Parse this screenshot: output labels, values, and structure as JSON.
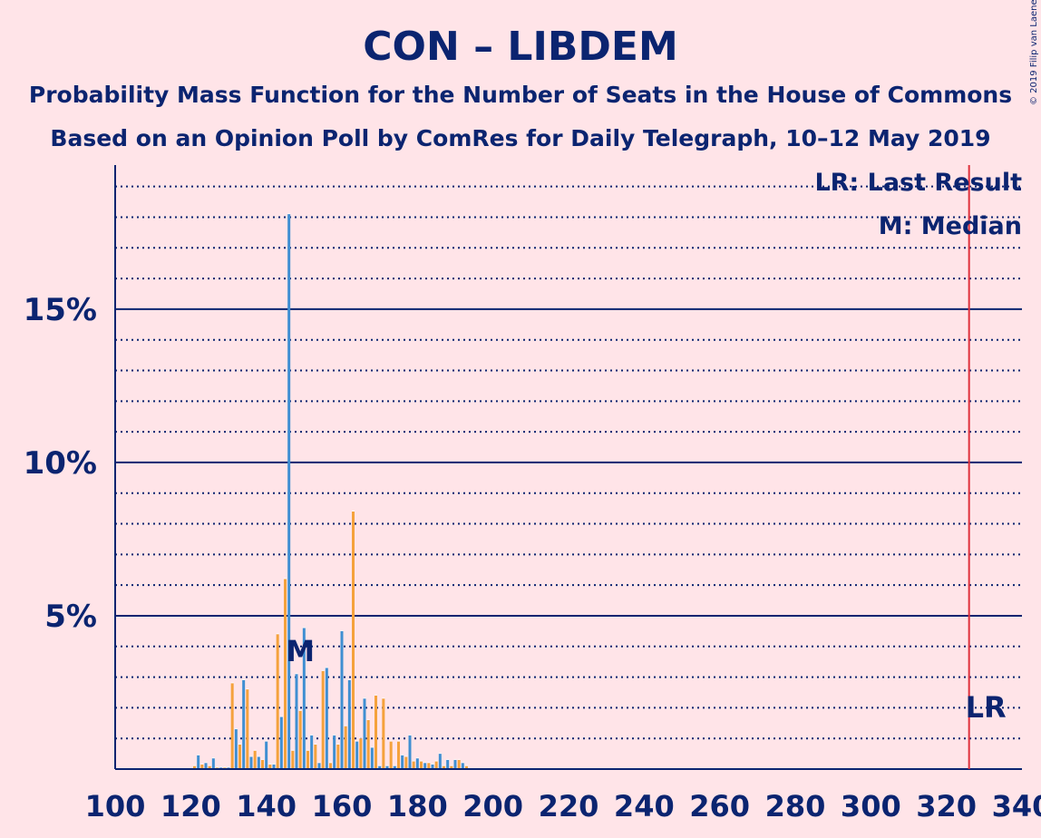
{
  "chart_data": {
    "type": "bar",
    "title": "CON – LIBDEM",
    "subtitle": "Probability Mass Function for the Number of Seats in the House of Commons",
    "subtitle2": "Based on an Opinion Poll by ComRes for Daily Telegraph, 10–12 May 2019",
    "copyright": "© 2019 Filip van Laenen",
    "xlim": [
      100,
      340
    ],
    "ylim": [
      0,
      19.7
    ],
    "x_ticks": [
      100,
      120,
      140,
      160,
      180,
      200,
      220,
      240,
      260,
      280,
      300,
      320,
      340
    ],
    "y_ticks": [
      {
        "value": 5,
        "label": "5%"
      },
      {
        "value": 10,
        "label": "10%"
      },
      {
        "value": 15,
        "label": "15%"
      }
    ],
    "grid": "dotted every 1%, solid at 5%",
    "legend": {
      "placement": "top-right",
      "lr_text": "LR: Last Result",
      "median_text": "M: Median"
    },
    "median": {
      "x": 149,
      "label": "M"
    },
    "last_result": {
      "x": 326,
      "label": "LR"
    },
    "colors": {
      "background": "#FFE4E8",
      "text": "#0B2470",
      "blue": "#3F8FD2",
      "orange": "#F5A23C",
      "last_result_line": "#E0303C"
    },
    "series": [
      {
        "color": "blue",
        "x": [
          122,
          124,
          126,
          128,
          130,
          132,
          134,
          136,
          138,
          140,
          142,
          144,
          146,
          148,
          150,
          152,
          154,
          156,
          158,
          160,
          162,
          164,
          166,
          168,
          170,
          172,
          174,
          176,
          178,
          180,
          182,
          184,
          186,
          188,
          190,
          192
        ],
        "values": [
          0.45,
          0.2,
          0.35,
          0.05,
          0.05,
          1.3,
          2.9,
          0.4,
          0.4,
          0.9,
          0.15,
          1.7,
          18.1,
          3.1,
          4.6,
          1.1,
          0.2,
          3.3,
          1.1,
          4.5,
          2.9,
          0.9,
          2.3,
          0.7,
          0.1,
          0.1,
          0.1,
          0.45,
          1.1,
          0.35,
          0.2,
          0.15,
          0.5,
          0.3,
          0.3,
          0.2
        ]
      },
      {
        "color": "orange",
        "x": [
          121,
          123,
          125,
          127,
          129,
          131,
          133,
          135,
          137,
          139,
          141,
          143,
          145,
          147,
          149,
          151,
          153,
          155,
          157,
          159,
          161,
          163,
          165,
          167,
          169,
          171,
          173,
          175,
          177,
          179,
          181,
          183,
          185,
          187,
          189,
          191,
          193
        ],
        "values": [
          0.1,
          0.15,
          0.1,
          0.05,
          0.05,
          2.8,
          0.8,
          2.6,
          0.6,
          0.3,
          0.15,
          4.4,
          6.2,
          0.6,
          1.9,
          0.6,
          0.8,
          3.2,
          0.2,
          0.8,
          1.4,
          8.4,
          1.0,
          1.6,
          2.4,
          2.3,
          0.9,
          0.9,
          0.4,
          0.25,
          0.25,
          0.2,
          0.25,
          0.1,
          0.1,
          0.3,
          0.1
        ]
      }
    ]
  }
}
